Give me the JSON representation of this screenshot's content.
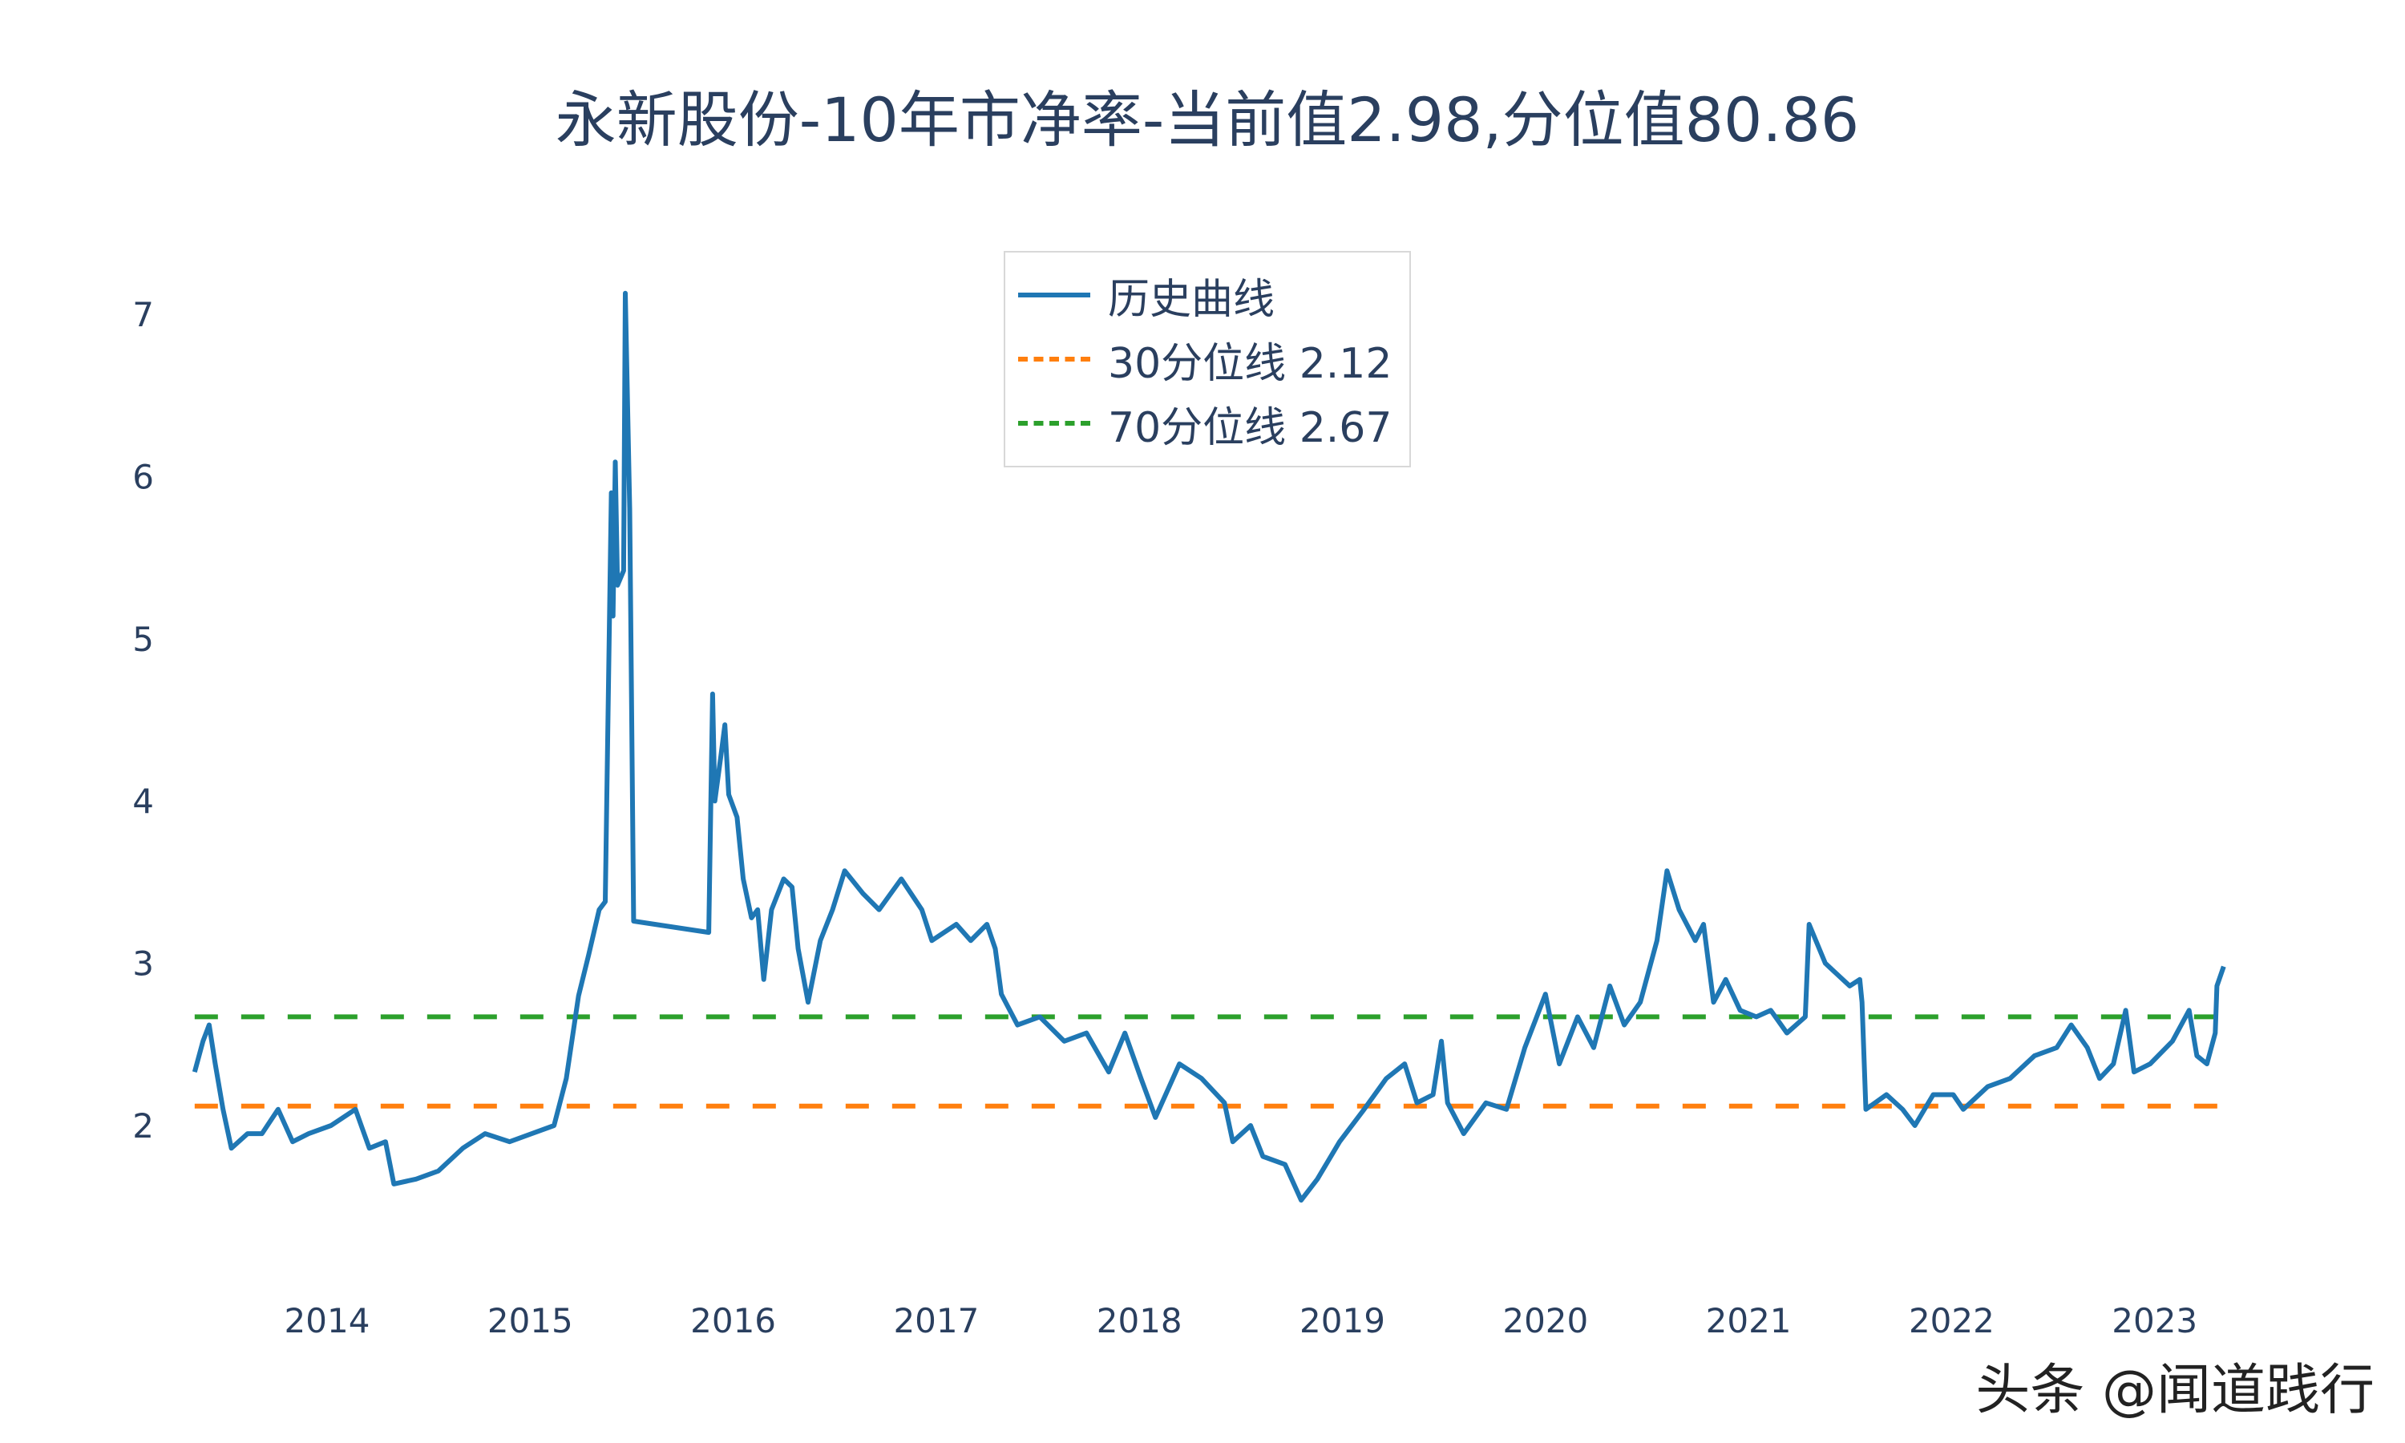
{
  "chart_data": {
    "type": "line",
    "title": "永新股份-10年市净率-当前值2.98,分位值80.86",
    "xlabel": "",
    "ylabel": "",
    "x_tick_labels": [
      "2014",
      "2015",
      "2016",
      "2017",
      "2018",
      "2019",
      "2020",
      "2021",
      "2022",
      "2023"
    ],
    "y_tick_labels": [
      "2",
      "3",
      "4",
      "5",
      "6",
      "7"
    ],
    "ylim": [
      1.3,
      7.2
    ],
    "xlim": [
      "2013-05-01",
      "2023-05-15"
    ],
    "grid": false,
    "legend_position": "top-center",
    "series": [
      {
        "name": "历史曲线",
        "color": "#1f77b4",
        "style": "solid",
        "x": [
          "2013-05-08",
          "2013-05-23",
          "2013-06-03",
          "2013-06-14",
          "2013-06-28",
          "2013-07-13",
          "2013-08-11",
          "2013-09-06",
          "2013-10-05",
          "2013-10-31",
          "2013-11-29",
          "2014-01-08",
          "2014-02-21",
          "2014-03-18",
          "2014-04-16",
          "2014-05-01",
          "2014-06-10",
          "2014-07-20",
          "2014-09-02",
          "2014-10-12",
          "2014-11-25",
          "2015-01-04",
          "2015-02-13",
          "2015-03-07",
          "2015-03-29",
          "2015-04-16",
          "2015-05-05",
          "2015-05-16",
          "2015-05-27",
          "2015-05-30",
          "2015-06-03",
          "2015-06-07",
          "2015-06-18",
          "2015-06-21",
          "2015-06-29",
          "2015-07-06",
          "2015-11-18",
          "2015-11-25",
          "2015-11-29",
          "2015-12-10",
          "2015-12-17",
          "2015-12-24",
          "2016-01-08",
          "2016-01-19",
          "2016-02-03",
          "2016-02-14",
          "2016-02-25",
          "2016-03-10",
          "2016-04-01",
          "2016-04-16",
          "2016-04-27",
          "2016-05-15",
          "2016-06-06",
          "2016-06-28",
          "2016-07-20",
          "2016-08-22",
          "2016-09-20",
          "2016-10-30",
          "2016-12-06",
          "2016-12-24",
          "2017-02-06",
          "2017-03-04",
          "2017-04-02",
          "2017-04-17",
          "2017-04-28",
          "2017-05-27",
          "2017-07-06",
          "2017-08-19",
          "2017-09-28",
          "2017-11-07",
          "2017-12-06",
          "2018-01-04",
          "2018-01-30",
          "2018-03-14",
          "2018-04-23",
          "2018-06-03",
          "2018-06-18",
          "2018-07-20",
          "2018-08-11",
          "2018-09-20",
          "2018-10-19",
          "2018-11-17",
          "2018-12-27",
          "2019-02-09",
          "2019-03-21",
          "2019-04-23",
          "2019-05-15",
          "2019-06-13",
          "2019-06-28",
          "2019-07-09",
          "2019-08-07",
          "2019-09-16",
          "2019-10-23",
          "2019-11-25",
          "2020-01-01",
          "2020-01-26",
          "2020-02-28",
          "2020-03-28",
          "2020-04-26",
          "2020-05-22",
          "2020-06-20",
          "2020-07-20",
          "2020-08-07",
          "2020-08-29",
          "2020-09-27",
          "2020-10-12",
          "2020-10-30",
          "2020-11-21",
          "2020-12-17",
          "2021-01-15",
          "2021-02-10",
          "2021-03-11",
          "2021-04-13",
          "2021-04-20",
          "2021-05-19",
          "2021-07-02",
          "2021-07-20",
          "2021-07-24",
          "2021-07-31",
          "2021-09-06",
          "2021-10-05",
          "2021-10-27",
          "2021-11-29",
          "2022-01-04",
          "2022-01-22",
          "2022-03-07",
          "2022-04-16",
          "2022-05-30",
          "2022-07-09",
          "2022-08-04",
          "2022-09-02",
          "2022-09-24",
          "2022-10-19",
          "2022-11-10",
          "2022-11-25",
          "2022-12-24",
          "2023-02-02",
          "2023-03-04",
          "2023-03-18",
          "2023-04-05",
          "2023-04-20",
          "2023-04-23",
          "2023-05-05"
        ],
        "values": [
          2.33,
          2.52,
          2.62,
          2.38,
          2.1,
          1.86,
          1.95,
          1.95,
          2.1,
          1.9,
          1.95,
          2.0,
          2.1,
          1.86,
          1.9,
          1.64,
          1.67,
          1.72,
          1.86,
          1.95,
          1.9,
          1.95,
          2.0,
          2.29,
          2.8,
          3.05,
          3.33,
          3.38,
          5.9,
          5.14,
          6.09,
          5.33,
          5.42,
          7.13,
          5.8,
          3.26,
          3.19,
          4.66,
          4.0,
          4.28,
          4.47,
          4.04,
          3.9,
          3.52,
          3.28,
          3.33,
          2.9,
          3.33,
          3.52,
          3.47,
          3.09,
          2.76,
          3.14,
          3.33,
          3.57,
          3.43,
          3.33,
          3.52,
          3.33,
          3.14,
          3.24,
          3.14,
          3.24,
          3.09,
          2.81,
          2.62,
          2.67,
          2.52,
          2.57,
          2.33,
          2.57,
          2.29,
          2.05,
          2.38,
          2.29,
          2.14,
          1.9,
          2.0,
          1.81,
          1.76,
          1.54,
          1.67,
          1.9,
          2.1,
          2.29,
          2.38,
          2.14,
          2.19,
          2.52,
          2.14,
          1.95,
          2.14,
          2.1,
          2.48,
          2.81,
          2.38,
          2.67,
          2.48,
          2.86,
          2.62,
          2.76,
          3.14,
          3.57,
          3.33,
          3.14,
          3.24,
          2.76,
          2.9,
          2.71,
          2.67,
          2.71,
          2.57,
          2.67,
          3.24,
          3.0,
          2.86,
          2.9,
          2.76,
          2.1,
          2.19,
          2.1,
          2.0,
          2.19,
          2.19,
          2.1,
          2.24,
          2.29,
          2.43,
          2.48,
          2.62,
          2.48,
          2.29,
          2.38,
          2.71,
          2.33,
          2.38,
          2.52,
          2.71,
          2.43,
          2.38,
          2.57,
          2.86,
          2.98
        ]
      },
      {
        "name": "30分位线 2.12",
        "color": "#ff7f0e",
        "style": "dash",
        "value": 2.12
      },
      {
        "name": "70分位线 2.67",
        "color": "#2ca02c",
        "style": "dash",
        "value": 2.67
      }
    ]
  },
  "watermark": "头条 @闻道践行"
}
